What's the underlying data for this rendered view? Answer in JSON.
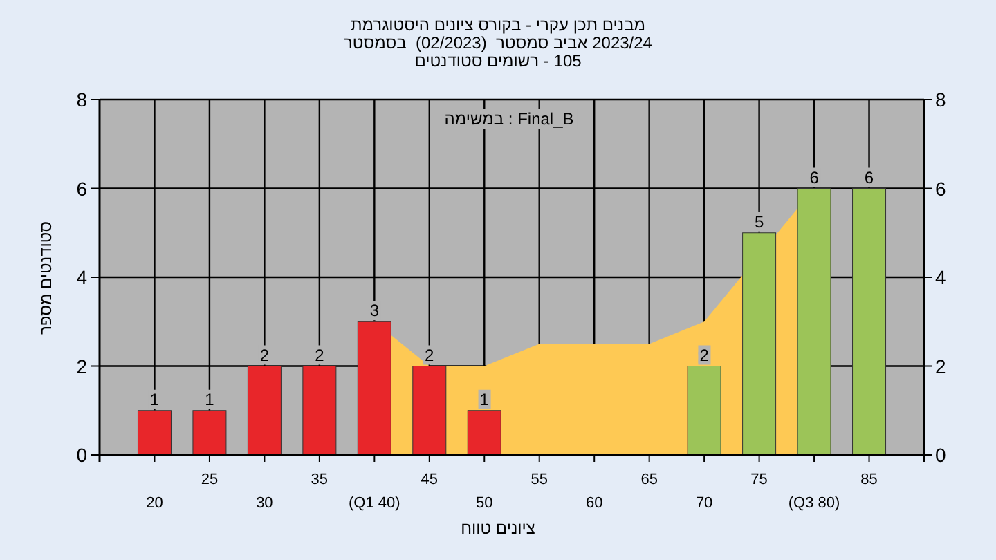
{
  "chart_data": {
    "type": "bar",
    "title": "היסטוגרמת ציונים בקורס - עקרי תכן מבנים",
    "subtitle": "בסמסטר  (02/2023)  סמסטר אביב 2023/24",
    "xlabel": "טווח ציונים",
    "ylabel": "מספר סטודנטים",
    "categories": [
      "20",
      "25",
      "30",
      "35",
      "(Q1 40)",
      "45",
      "50",
      "55",
      "60",
      "65",
      "70",
      "75",
      "(Q3 80)",
      "85"
    ],
    "series": [
      {
        "type": "area",
        "color": "#fec954",
        "values": [
          null,
          null,
          null,
          null,
          3,
          2,
          2,
          2.5,
          2.5,
          2.5,
          3,
          null,
          6,
          null
        ]
      },
      {
        "colors": [
          "#e8262a",
          "#e8262a",
          "#e8262a",
          "#e8262a",
          "#e8262a",
          "#e8262a",
          "#e8262a",
          "#e8262a",
          "#e8262a",
          "#e8262a",
          "#9cc458",
          "#9cc458",
          "#9cc458",
          "#9cc458"
        ],
        "values": [
          1,
          1,
          2,
          2,
          3,
          2,
          1,
          null,
          null,
          null,
          2,
          5,
          6,
          6
        ],
        "value_labels": [
          "1",
          "1",
          "2",
          "2",
          "3",
          "2",
          "1",
          null,
          null,
          null,
          "2",
          "5",
          "6",
          "6"
        ]
      }
    ],
    "ylim": [
      0,
      8
    ],
    "yticks": [
      0,
      2,
      4,
      6,
      8
    ],
    "y2lim": [
      0,
      8
    ],
    "y2ticks": [
      0,
      2,
      4,
      6,
      8
    ],
    "grid": true,
    "annotations": [
      "סטודנטים רשומים - 105",
      "במשימה : Final_B"
    ]
  }
}
